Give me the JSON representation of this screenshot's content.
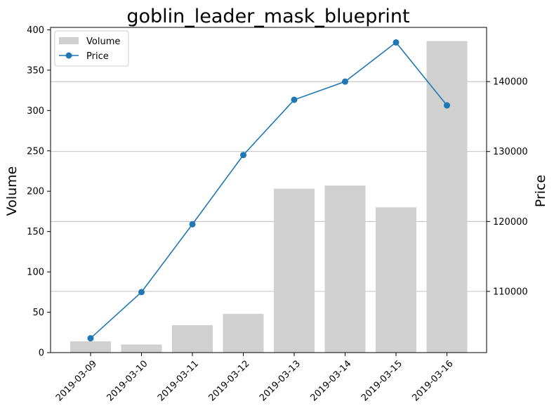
{
  "chart_data": {
    "type": "bar+line",
    "title": "goblin_leader_mask_blueprint",
    "categories": [
      "2019-03-09",
      "2019-03-10",
      "2019-03-11",
      "2019-03-12",
      "2019-03-13",
      "2019-03-14",
      "2019-03-15",
      "2019-03-16"
    ],
    "series": [
      {
        "name": "Volume",
        "type": "bar",
        "axis": "left",
        "color": "#d0d0d0",
        "values": [
          14,
          10,
          34,
          48,
          203,
          207,
          180,
          386
        ]
      },
      {
        "name": "Price",
        "type": "line",
        "axis": "right",
        "color": "#1f77b4",
        "marker": "circle",
        "values": [
          103300,
          109900,
          119600,
          129500,
          137400,
          140000,
          145600,
          136600
        ]
      }
    ],
    "y_left": {
      "label": "Volume",
      "lim": [
        0,
        403
      ],
      "ticks": [
        0,
        50,
        100,
        150,
        200,
        250,
        300,
        350,
        400
      ]
    },
    "y_right": {
      "label": "Price",
      "lim": [
        101250,
        147750
      ],
      "ticks": [
        110000,
        120000,
        130000,
        140000
      ]
    },
    "grid": "horizontal-right-axis",
    "legend": {
      "placement": "top-left",
      "entries": [
        "Volume",
        "Price"
      ]
    }
  }
}
